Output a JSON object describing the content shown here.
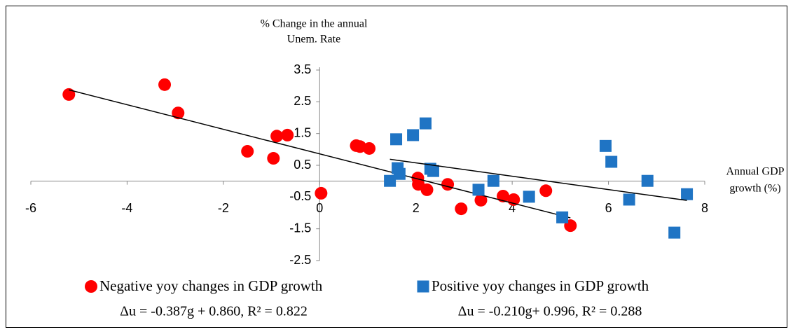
{
  "chart_data": {
    "type": "scatter",
    "y_label": [
      "% Change in the annual",
      "Unem. Rate"
    ],
    "x_label": [
      "Annual GDP",
      "growth (%)"
    ],
    "xlim": [
      -6,
      8
    ],
    "xticks": [
      -6,
      -4,
      -2,
      0,
      2,
      4,
      6,
      8
    ],
    "ylim": [
      -2.5,
      3.5
    ],
    "yticks": [
      -2.5,
      -1.5,
      -0.5,
      0.5,
      1.5,
      2.5,
      3.5
    ],
    "series": [
      {
        "name": "Negative yoy changes in GDP growth",
        "color": "#ff0000",
        "marker": "circle",
        "x": [
          -5.21,
          -3.22,
          -2.94,
          -1.5,
          -0.96,
          -0.89,
          -0.67,
          0.03,
          0.76,
          0.84,
          1.03,
          2.04,
          2.05,
          2.23,
          2.66,
          2.94,
          3.35,
          3.81,
          4.03,
          4.7,
          5.21
        ],
        "values": [
          2.73,
          3.04,
          2.15,
          0.94,
          0.72,
          1.42,
          1.45,
          -0.38,
          1.12,
          1.09,
          1.03,
          0.1,
          -0.1,
          -0.27,
          -0.1,
          -0.87,
          -0.6,
          -0.47,
          -0.58,
          -0.3,
          -1.4
        ],
        "trendline": {
          "slope": -0.387,
          "intercept": 0.86,
          "r2": 0.822,
          "equation": "Δu = -0.387g + 0.860, R² = 0.822"
        }
      },
      {
        "name": "Positive yoy changes in GDP growth",
        "color": "#1f74c4",
        "marker": "square",
        "x": [
          1.46,
          1.59,
          1.62,
          1.66,
          1.94,
          2.2,
          2.3,
          2.36,
          3.3,
          3.61,
          4.35,
          5.04,
          5.94,
          6.06,
          6.43,
          6.81,
          7.37,
          7.63
        ],
        "values": [
          0.01,
          1.32,
          0.41,
          0.23,
          1.45,
          1.82,
          0.39,
          0.32,
          -0.27,
          0.01,
          -0.49,
          -1.14,
          1.11,
          0.61,
          -0.58,
          0.01,
          -1.62,
          -0.41
        ],
        "trendline": {
          "slope": -0.21,
          "intercept": 0.996,
          "r2": 0.288,
          "equation": "Δu = -0.210g+ 0.996,  R² = 0.288"
        }
      }
    ]
  }
}
